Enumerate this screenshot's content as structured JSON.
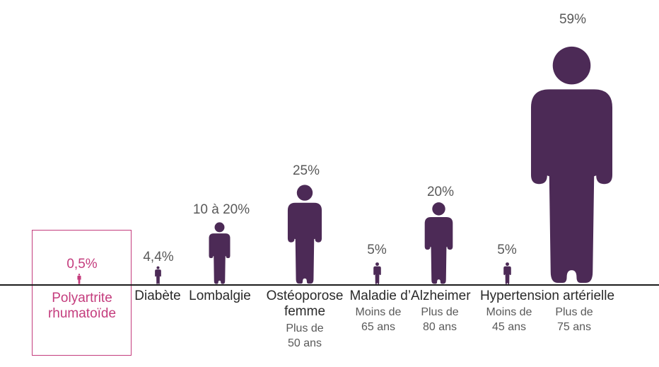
{
  "chart_data": {
    "type": "bar",
    "subtype": "human-pictogram-heights",
    "title": "",
    "unit": "prevalence (%)",
    "layout": {
      "baseline_axis": true,
      "legend": "none",
      "grid": false,
      "note": "each condition shown as a human silhouette whose height encodes prevalence"
    },
    "colors": {
      "figure": "#4c2a56",
      "highlight": "#c43c7d",
      "value_text": "#595959",
      "label_text": "#2a2a2a",
      "note_text": "#595959",
      "baseline": "#1c1c1c"
    },
    "groups": [
      {
        "condition": "Polyartrite rhumatoïde",
        "highlighted": true,
        "figures": [
          {
            "value_label": "0,5%",
            "value": 0.5,
            "age_note": ""
          }
        ]
      },
      {
        "condition": "Diabète",
        "highlighted": false,
        "figures": [
          {
            "value_label": "4,4%",
            "value": 4.4,
            "age_note": ""
          }
        ]
      },
      {
        "condition": "Lombalgie",
        "highlighted": false,
        "figures": [
          {
            "value_label": "10 à 20%",
            "value": 15,
            "value_min": 10,
            "value_max": 20,
            "age_note": ""
          }
        ]
      },
      {
        "condition": "Ostéoporose femme",
        "highlighted": false,
        "figures": [
          {
            "value_label": "25%",
            "value": 25,
            "age_note": "Plus de 50 ans"
          }
        ]
      },
      {
        "condition": "Maladie d’Alzheimer",
        "highlighted": false,
        "figures": [
          {
            "value_label": "5%",
            "value": 5,
            "age_note": "Moins de 65 ans"
          },
          {
            "value_label": "20%",
            "value": 20,
            "age_note": "Plus de 80 ans"
          }
        ]
      },
      {
        "condition": "Hypertension artérielle",
        "highlighted": false,
        "figures": [
          {
            "value_label": "5%",
            "value": 5,
            "age_note": "Moins de 45 ans"
          },
          {
            "value_label": "59%",
            "value": 59,
            "age_note": "Plus de 75 ans"
          }
        ]
      }
    ]
  }
}
